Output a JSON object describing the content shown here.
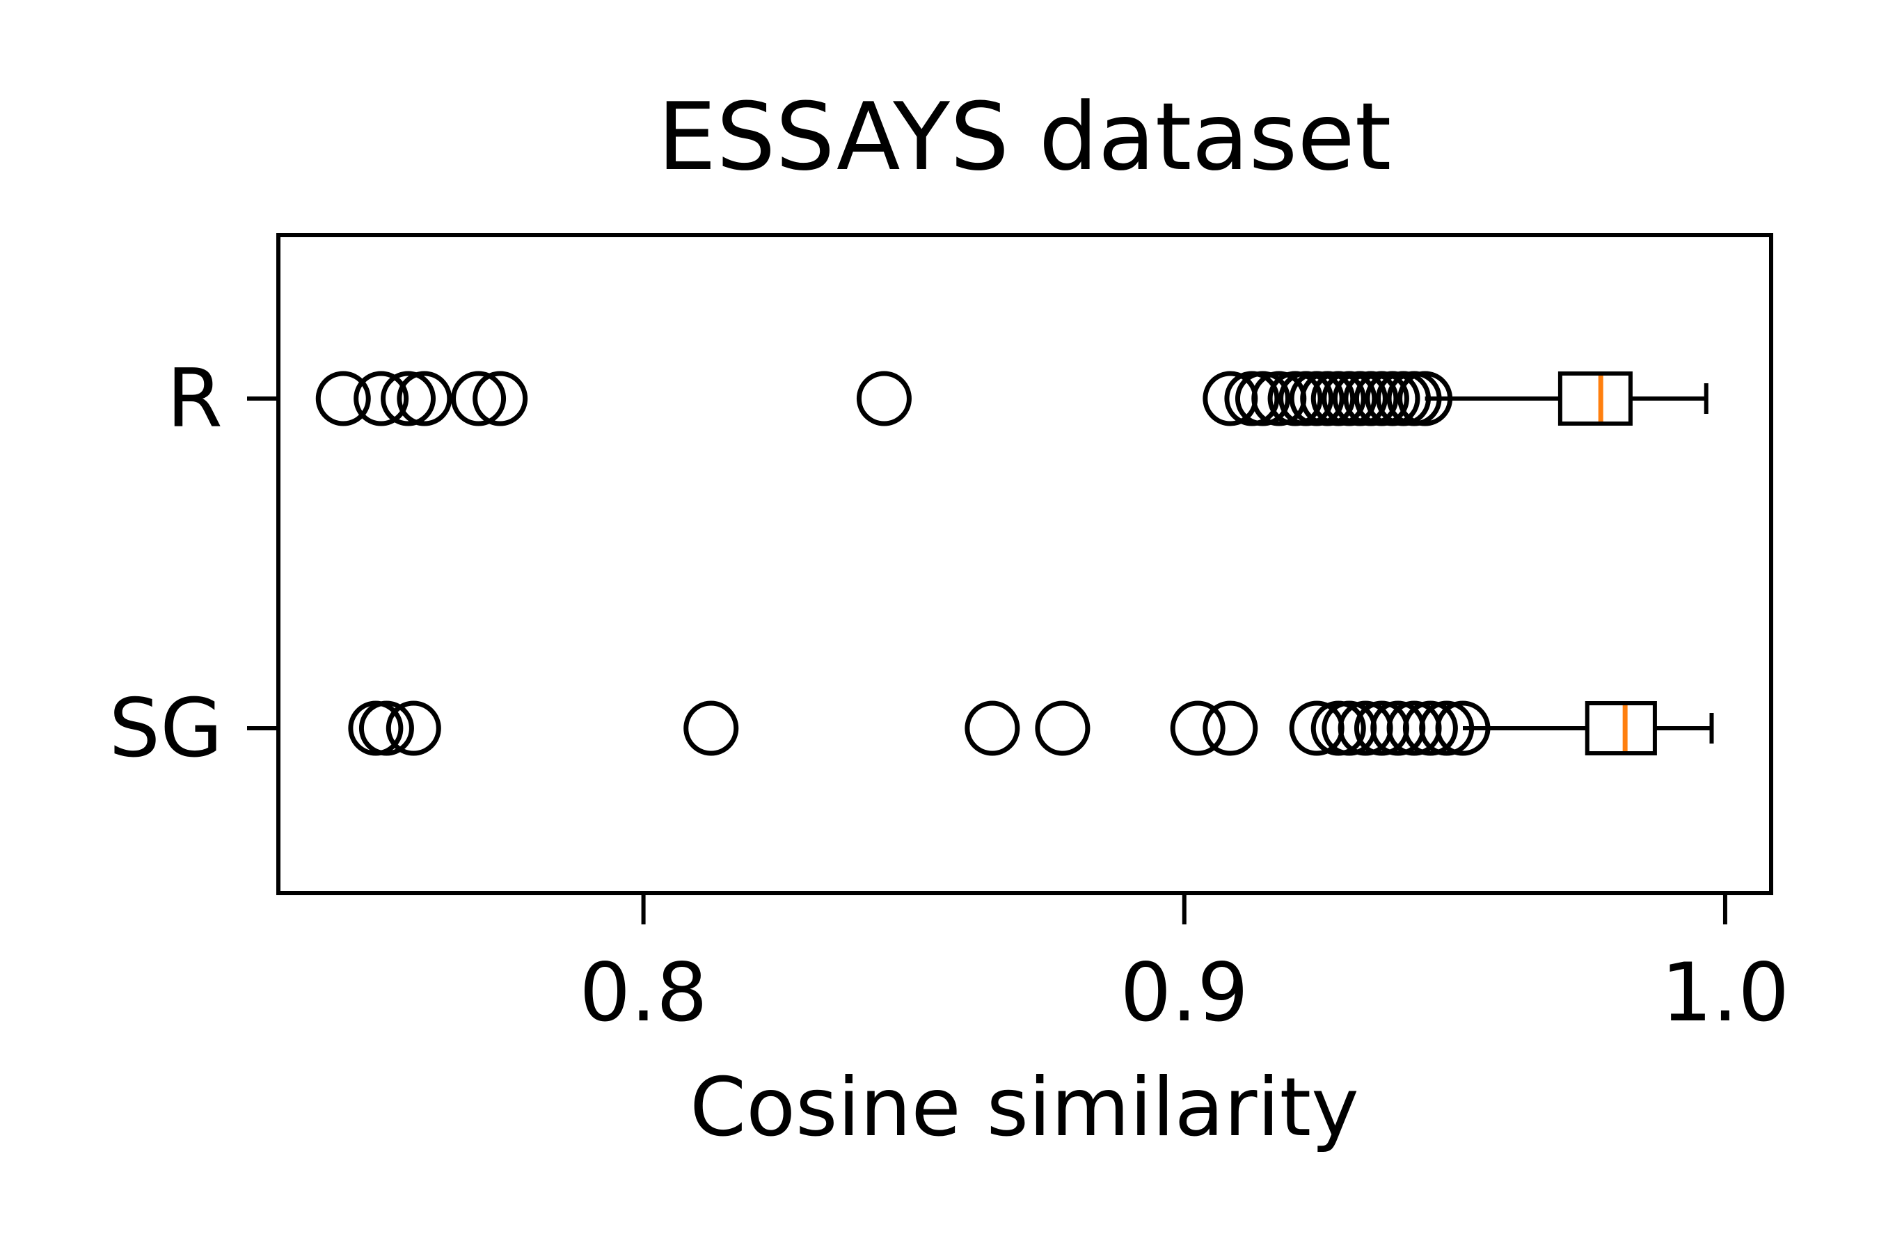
{
  "chart_data": {
    "type": "boxplot",
    "orientation": "horizontal",
    "title": "ESSAYS dataset",
    "xlabel": "Cosine similarity",
    "ylabel": "",
    "xlim": [
      0.7325,
      1.0085
    ],
    "x_ticks": [
      0.8,
      0.9,
      1.0
    ],
    "x_tick_labels": [
      "0.8",
      "0.9",
      "1.0"
    ],
    "categories": [
      "R",
      "SG"
    ],
    "grid": false,
    "legend": "none",
    "colors": {
      "box": "#000000",
      "median": "#ff7f0e",
      "outlier": "#000000"
    },
    "series": [
      {
        "category": "R",
        "whisker_low": 0.9445,
        "q1": 0.9695,
        "median": 0.977,
        "q3": 0.9825,
        "whisker_high": 0.9965,
        "outliers": [
          0.7445,
          0.7515,
          0.7565,
          0.7595,
          0.7695,
          0.7735,
          0.8445,
          0.9085,
          0.9125,
          0.9145,
          0.9175,
          0.9205,
          0.9225,
          0.9245,
          0.9265,
          0.9285,
          0.9305,
          0.9325,
          0.9345,
          0.9365,
          0.9385,
          0.9405,
          0.9425,
          0.9445
        ]
      },
      {
        "category": "SG",
        "whisker_low": 0.9515,
        "q1": 0.9745,
        "median": 0.9815,
        "q3": 0.987,
        "whisker_high": 0.9975,
        "outliers": [
          0.7505,
          0.7525,
          0.7575,
          0.8125,
          0.8645,
          0.8775,
          0.9025,
          0.9085,
          0.9245,
          0.9285,
          0.9305,
          0.9335,
          0.9365,
          0.9395,
          0.9425,
          0.9455,
          0.9485,
          0.9515
        ]
      }
    ]
  }
}
